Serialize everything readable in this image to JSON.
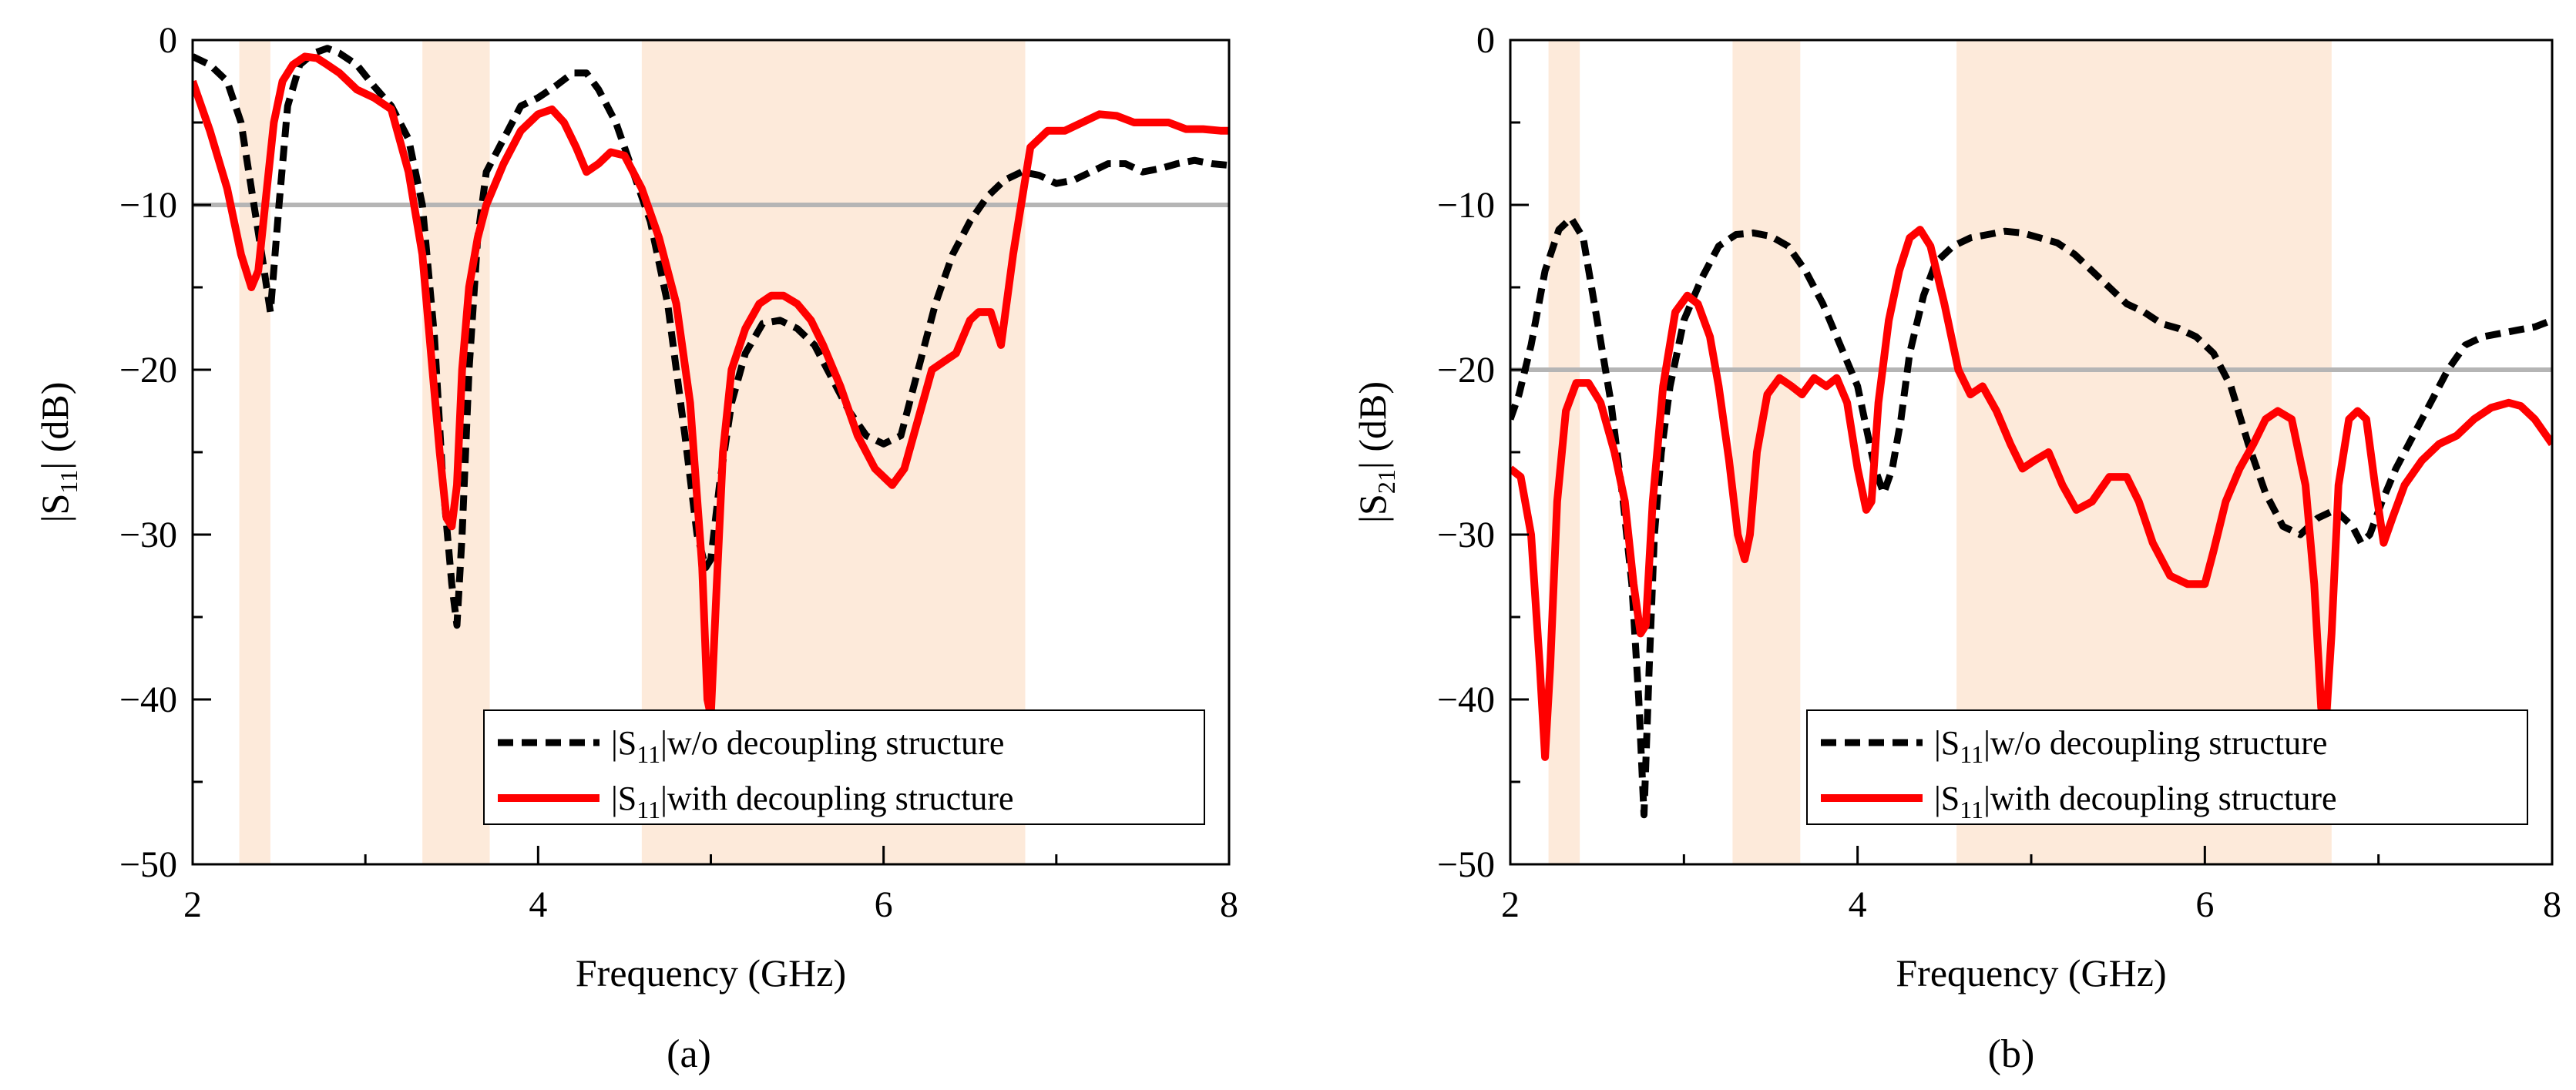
{
  "chart_data": [
    {
      "type": "line",
      "caption": "(a)",
      "xlabel": "Frequency (GHz)",
      "ylabel": {
        "prefix": "|S",
        "sub": "11",
        "suffix": "| (dB)"
      },
      "xlim": [
        2,
        8
      ],
      "ylim": [
        -50,
        0
      ],
      "xticks": [
        2,
        4,
        6,
        8
      ],
      "yticks": [
        0,
        -10,
        -20,
        -30,
        -40,
        -50
      ],
      "ytick_labels": [
        "0",
        "−10",
        "−20",
        "−30",
        "−40",
        "−50"
      ],
      "reference_line": -10,
      "shaded_bands": [
        [
          2.27,
          2.45
        ],
        [
          3.33,
          3.72
        ],
        [
          4.6,
          6.82
        ]
      ],
      "legend": {
        "position": "bottom-right"
      },
      "series": [
        {
          "name": "w/o decoupling structure",
          "label_prefix": "|S",
          "label_sub": "11",
          "label_suffix": "|w/o decoupling structure",
          "style": "dashed",
          "color": "#000000",
          "x": [
            2.0,
            2.1,
            2.2,
            2.28,
            2.34,
            2.4,
            2.45,
            2.5,
            2.55,
            2.62,
            2.7,
            2.78,
            2.85,
            2.95,
            3.05,
            3.15,
            3.25,
            3.33,
            3.4,
            3.45,
            3.5,
            3.53,
            3.56,
            3.6,
            3.65,
            3.7,
            3.8,
            3.9,
            4.0,
            4.1,
            4.2,
            4.28,
            4.35,
            4.45,
            4.55,
            4.65,
            4.75,
            4.85,
            4.92,
            4.97,
            5.0,
            5.05,
            5.12,
            5.2,
            5.3,
            5.4,
            5.5,
            5.6,
            5.7,
            5.8,
            5.9,
            6.0,
            6.1,
            6.2,
            6.3,
            6.4,
            6.5,
            6.6,
            6.7,
            6.8,
            6.9,
            7.0,
            7.1,
            7.2,
            7.3,
            7.4,
            7.5,
            7.6,
            7.7,
            7.8,
            7.9,
            8.0
          ],
          "values": [
            -1,
            -1.5,
            -2.5,
            -5,
            -9,
            -13,
            -16.5,
            -10,
            -4,
            -1.5,
            -0.8,
            -0.5,
            -0.8,
            -1.5,
            -2.8,
            -4,
            -6,
            -10,
            -18,
            -27,
            -33,
            -35.5,
            -30,
            -20,
            -12,
            -8,
            -6,
            -4,
            -3.5,
            -2.8,
            -2,
            -2,
            -3,
            -5,
            -8,
            -11,
            -16,
            -24,
            -30,
            -32,
            -31.5,
            -27,
            -22,
            -19,
            -17.2,
            -17,
            -17.5,
            -18.5,
            -20.5,
            -22.5,
            -24,
            -24.5,
            -24,
            -20,
            -16,
            -13,
            -11,
            -9.5,
            -8.5,
            -8,
            -8.2,
            -8.7,
            -8.5,
            -8.0,
            -7.5,
            -7.5,
            -8.0,
            -7.8,
            -7.5,
            -7.3,
            -7.5,
            -7.6
          ]
        },
        {
          "name": "with decoupling structure",
          "label_prefix": "|S",
          "label_sub": "11",
          "label_suffix": "|with decoupling structure",
          "style": "solid",
          "color": "#ff0000",
          "x": [
            2.0,
            2.1,
            2.2,
            2.28,
            2.34,
            2.38,
            2.42,
            2.47,
            2.52,
            2.58,
            2.65,
            2.72,
            2.78,
            2.85,
            2.95,
            3.05,
            3.15,
            3.25,
            3.33,
            3.38,
            3.43,
            3.47,
            3.5,
            3.53,
            3.56,
            3.6,
            3.65,
            3.7,
            3.8,
            3.9,
            4.0,
            4.08,
            4.15,
            4.22,
            4.28,
            4.35,
            4.42,
            4.5,
            4.6,
            4.7,
            4.8,
            4.88,
            4.95,
            4.98,
            5.0,
            5.03,
            5.07,
            5.12,
            5.2,
            5.28,
            5.35,
            5.42,
            5.5,
            5.58,
            5.65,
            5.75,
            5.85,
            5.95,
            6.05,
            6.12,
            6.2,
            6.28,
            6.35,
            6.42,
            6.5,
            6.55,
            6.62,
            6.68,
            6.75,
            6.85,
            6.95,
            7.05,
            7.15,
            7.25,
            7.35,
            7.45,
            7.55,
            7.65,
            7.75,
            7.85,
            7.95,
            8.0
          ],
          "values": [
            -2.5,
            -5.5,
            -9,
            -13,
            -15,
            -14,
            -10,
            -5,
            -2.5,
            -1.5,
            -1.0,
            -1.1,
            -1.5,
            -2,
            -3,
            -3.5,
            -4.2,
            -8,
            -13,
            -19,
            -25,
            -29,
            -29.5,
            -27,
            -20,
            -15,
            -12,
            -10,
            -7.5,
            -5.5,
            -4.5,
            -4.2,
            -5,
            -6.5,
            -8,
            -7.5,
            -6.8,
            -7,
            -9,
            -12,
            -16,
            -22,
            -32,
            -40,
            -41,
            -34,
            -25,
            -20,
            -17.5,
            -16,
            -15.5,
            -15.5,
            -16,
            -17,
            -18.5,
            -21,
            -24,
            -26,
            -27,
            -26,
            -23,
            -20,
            -19.5,
            -19,
            -17,
            -16.5,
            -16.5,
            -18.5,
            -13,
            -6.5,
            -5.5,
            -5.5,
            -5,
            -4.5,
            -4.6,
            -5,
            -5,
            -5,
            -5.4,
            -5.4,
            -5.5,
            -5.5
          ]
        }
      ]
    },
    {
      "type": "line",
      "caption": "(b)",
      "xlabel": "Frequency (GHz)",
      "ylabel": {
        "prefix": "|S",
        "sub": "21",
        "suffix": "| (dB)"
      },
      "xlim": [
        2,
        8
      ],
      "ylim": [
        -50,
        0
      ],
      "xticks": [
        2,
        4,
        6,
        8
      ],
      "yticks": [
        0,
        -10,
        -20,
        -30,
        -40,
        -50
      ],
      "ytick_labels": [
        "0",
        "−10",
        "−20",
        "−30",
        "−40",
        "−50"
      ],
      "reference_line": -20,
      "shaded_bands": [
        [
          2.22,
          2.4
        ],
        [
          3.28,
          3.67
        ],
        [
          4.57,
          6.73
        ]
      ],
      "legend": {
        "position": "bottom-right"
      },
      "series": [
        {
          "name": "w/o decoupling structure",
          "label_prefix": "|S",
          "label_sub": "11",
          "label_suffix": "|w/o decoupling structure",
          "style": "dashed",
          "color": "#000000",
          "x": [
            2.0,
            2.05,
            2.12,
            2.2,
            2.28,
            2.35,
            2.42,
            2.5,
            2.58,
            2.65,
            2.7,
            2.74,
            2.77,
            2.8,
            2.83,
            2.87,
            2.92,
            3.0,
            3.1,
            3.2,
            3.3,
            3.4,
            3.5,
            3.6,
            3.7,
            3.8,
            3.9,
            4.0,
            4.05,
            4.1,
            4.15,
            4.2,
            4.25,
            4.3,
            4.38,
            4.45,
            4.55,
            4.65,
            4.75,
            4.85,
            4.95,
            5.05,
            5.15,
            5.25,
            5.35,
            5.45,
            5.55,
            5.65,
            5.75,
            5.85,
            5.95,
            6.05,
            6.15,
            6.25,
            6.35,
            6.45,
            6.55,
            6.65,
            6.75,
            6.85,
            6.9,
            6.95,
            7.02,
            7.1,
            7.2,
            7.3,
            7.4,
            7.5,
            7.6,
            7.7,
            7.8,
            7.9,
            8.0
          ],
          "values": [
            -23,
            -21.5,
            -18.5,
            -14,
            -11.5,
            -10.8,
            -12,
            -17,
            -22,
            -28,
            -33,
            -40,
            -47,
            -38,
            -30,
            -25,
            -21,
            -17,
            -14.5,
            -12.5,
            -11.8,
            -11.7,
            -11.9,
            -12.5,
            -14,
            -16,
            -18.5,
            -21,
            -23.5,
            -26,
            -27.5,
            -26,
            -23,
            -19,
            -15.5,
            -13.5,
            -12.5,
            -12,
            -11.8,
            -11.6,
            -11.7,
            -12,
            -12.3,
            -13,
            -14,
            -15,
            -16,
            -16.5,
            -17.2,
            -17.5,
            -18,
            -19,
            -21,
            -24.5,
            -27.5,
            -29.5,
            -30,
            -29,
            -28.5,
            -29.5,
            -30.5,
            -30,
            -28,
            -26,
            -24,
            -22,
            -20,
            -18.5,
            -18,
            -17.8,
            -17.6,
            -17.4,
            -17
          ]
        },
        {
          "name": "with decoupling structure",
          "label_prefix": "|S",
          "label_sub": "11",
          "label_suffix": "|with decoupling structure",
          "style": "solid",
          "color": "#ff0000",
          "x": [
            2.0,
            2.06,
            2.12,
            2.17,
            2.2,
            2.23,
            2.27,
            2.32,
            2.38,
            2.45,
            2.52,
            2.6,
            2.66,
            2.71,
            2.75,
            2.78,
            2.82,
            2.88,
            2.95,
            3.02,
            3.08,
            3.15,
            3.2,
            3.26,
            3.31,
            3.35,
            3.38,
            3.42,
            3.48,
            3.55,
            3.62,
            3.68,
            3.75,
            3.82,
            3.88,
            3.94,
            4.0,
            4.05,
            4.08,
            4.12,
            4.18,
            4.24,
            4.3,
            4.36,
            4.42,
            4.5,
            4.58,
            4.65,
            4.72,
            4.8,
            4.88,
            4.95,
            5.02,
            5.1,
            5.18,
            5.26,
            5.35,
            5.45,
            5.55,
            5.62,
            5.7,
            5.8,
            5.9,
            6.0,
            6.05,
            6.12,
            6.2,
            6.28,
            6.35,
            6.42,
            6.5,
            6.58,
            6.63,
            6.67,
            6.7,
            6.73,
            6.77,
            6.83,
            6.88,
            6.93,
            6.98,
            7.03,
            7.08,
            7.15,
            7.25,
            7.35,
            7.45,
            7.55,
            7.65,
            7.75,
            7.82,
            7.9,
            8.0
          ],
          "values": [
            -26,
            -26.5,
            -30,
            -38,
            -43.5,
            -38,
            -28,
            -22.5,
            -20.8,
            -20.8,
            -22,
            -25,
            -28,
            -33,
            -36,
            -35.5,
            -28,
            -21,
            -16.5,
            -15.5,
            -16,
            -18,
            -21,
            -25.5,
            -30,
            -31.5,
            -30,
            -25,
            -21.5,
            -20.5,
            -21,
            -21.5,
            -20.5,
            -21,
            -20.5,
            -22,
            -26,
            -28.5,
            -28,
            -22,
            -17,
            -14,
            -12,
            -11.5,
            -12.5,
            -16,
            -20,
            -21.5,
            -21,
            -22.5,
            -24.5,
            -26,
            -25.5,
            -25,
            -27,
            -28.5,
            -28,
            -26.5,
            -26.5,
            -28,
            -30.5,
            -32.5,
            -33,
            -33,
            -31,
            -28,
            -26,
            -24.5,
            -23,
            -22.5,
            -23,
            -27,
            -33,
            -40.5,
            -41,
            -36,
            -27,
            -23,
            -22.5,
            -23,
            -27,
            -30.5,
            -29,
            -27,
            -25.5,
            -24.5,
            -24,
            -23,
            -22.3,
            -22,
            -22.2,
            -23,
            -24.5
          ]
        }
      ]
    }
  ]
}
